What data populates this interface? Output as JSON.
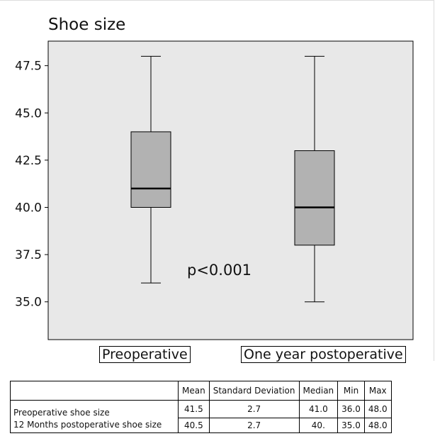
{
  "chart_data": {
    "type": "box",
    "title": "Shoe size",
    "ylim": [
      33.0,
      48.8
    ],
    "yticks": [
      "47.5",
      "45.0",
      "42.5",
      "40.0",
      "37.5",
      "35.0"
    ],
    "ytick_values": [
      47.5,
      45.0,
      42.5,
      40.0,
      37.5,
      35.0
    ],
    "categories": [
      "Preoperative",
      "One year postoperative"
    ],
    "boxes": [
      {
        "min": 36.0,
        "q1": 40.0,
        "median": 41.0,
        "q3": 44.0,
        "max": 48.0
      },
      {
        "min": 35.0,
        "q1": 38.0,
        "median": 40.0,
        "q3": 43.0,
        "max": 48.0
      }
    ],
    "box_color": "#b2b2b2",
    "plot_background": "#e8e8e8",
    "grid": false,
    "annotation": "p<0.001"
  },
  "table": {
    "headers": [
      "",
      "Mean",
      "Standard Deviation",
      "Median",
      "Min",
      "Max"
    ],
    "rows": [
      {
        "label": "Preoperative shoe size",
        "mean": "41.5",
        "sd": "2.7",
        "median": "41.0",
        "min": "36.0",
        "max": "48.0"
      },
      {
        "label": "12 Months postoperative shoe size",
        "mean": "40.5",
        "sd": "2.7",
        "median": "40.",
        "min": "35.0",
        "max": "48.0"
      }
    ]
  }
}
